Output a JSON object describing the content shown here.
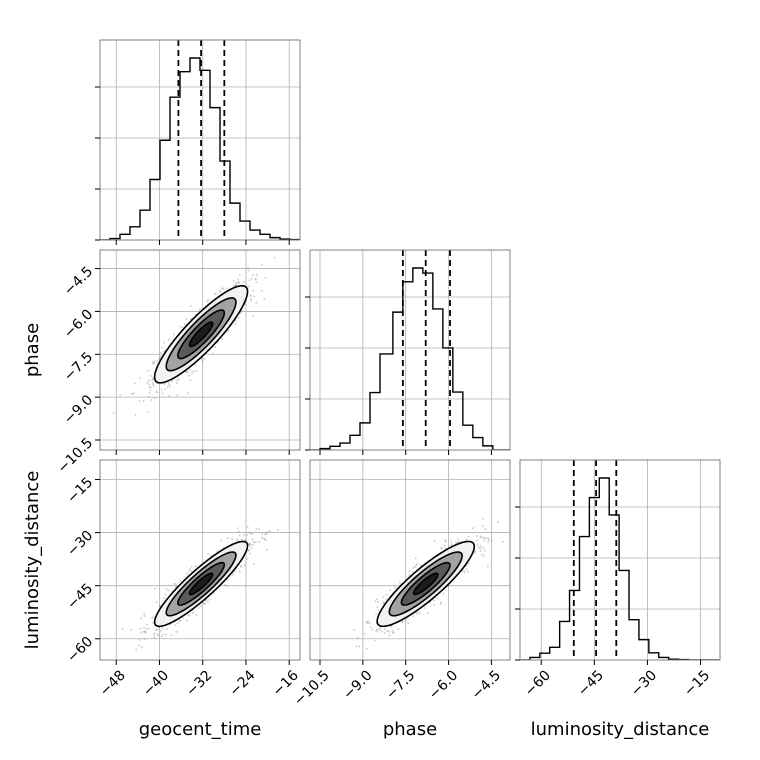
{
  "chart_data": {
    "type": "corner",
    "parameters": [
      "geocent_time",
      "phase",
      "luminosity_distance"
    ],
    "grid": true,
    "colors": {
      "hist_line": "#000000",
      "quantile_line": "#000000",
      "grid": "#b0b0b0",
      "scatter": "#9a9a9a"
    },
    "quantile_style": "dashed",
    "axes": {
      "geocent_time": {
        "label": "geocent_time",
        "range": [
          -51,
          -14
        ],
        "ticks": [
          -48,
          -40,
          -32,
          -24,
          -16
        ],
        "tick_labels": [
          "−48",
          "−40",
          "−32",
          "−24",
          "−16"
        ],
        "quantiles": [
          -36.5,
          -32.3,
          -28.0
        ]
      },
      "phase": {
        "label": "phase",
        "range": [
          -10.85,
          -3.85
        ],
        "ticks": [
          -10.5,
          -9.0,
          -7.5,
          -6.0,
          -4.5
        ],
        "tick_labels": [
          "−10.5",
          "−9.0",
          "−7.5",
          "−6.0",
          "−4.5"
        ],
        "quantiles": [
          -7.6,
          -6.8,
          -5.95
        ]
      },
      "luminosity_distance": {
        "label": "luminosity_distance",
        "range": [
          -66,
          -9.5
        ],
        "ticks": [
          -60,
          -45,
          -30,
          -15
        ],
        "tick_labels": [
          "−60",
          "−45",
          "−30",
          "−15"
        ],
        "quantiles": [
          -50.8,
          -44.5,
          -38.8
        ]
      }
    },
    "histograms": {
      "geocent_time": {
        "bin_edges": [
          -51,
          -49.15,
          -47.3,
          -45.45,
          -43.6,
          -41.75,
          -39.9,
          -38.05,
          -36.2,
          -34.35,
          -32.5,
          -30.65,
          -28.8,
          -26.95,
          -25.1,
          -23.25,
          -21.4,
          -19.55,
          -17.7,
          -15.85,
          -14
        ],
        "counts": [
          0,
          3,
          12,
          28,
          63,
          128,
          211,
          302,
          356,
          385,
          359,
          280,
          167,
          78,
          40,
          21,
          12,
          5,
          2,
          1
        ]
      },
      "phase": {
        "bin_edges": [
          -10.85,
          -10.5,
          -10.15,
          -9.8,
          -9.45,
          -9.1,
          -8.75,
          -8.4,
          -7.95,
          -7.6,
          -7.25,
          -6.9,
          -6.55,
          -6.2,
          -5.85,
          -5.5,
          -5.15,
          -4.8,
          -4.45,
          -4.1,
          -3.85
        ],
        "counts": [
          0,
          3,
          8,
          15,
          32,
          59,
          125,
          209,
          300,
          366,
          396,
          385,
          307,
          222,
          126,
          54,
          27,
          9,
          0,
          0
        ]
      },
      "luminosity_distance": {
        "bin_edges": [
          -66,
          -63.2,
          -60.4,
          -57.6,
          -54.8,
          -52,
          -49.2,
          -46.4,
          -43.6,
          -40.8,
          -38,
          -35.2,
          -32.4,
          -29.6,
          -26.8,
          -24,
          -21.2,
          -18.4,
          -15.6,
          -12.8,
          -9.5
        ],
        "counts": [
          0,
          6,
          16,
          30,
          91,
          164,
          291,
          383,
          429,
          342,
          211,
          95,
          48,
          17,
          6,
          2,
          1,
          0,
          0,
          0
        ]
      }
    },
    "pairs": [
      {
        "x": "geocent_time",
        "y": "phase",
        "mean": [
          -32.3,
          -6.8
        ],
        "sd": [
          4.3,
          0.85
        ],
        "rho": 0.88
      },
      {
        "x": "geocent_time",
        "y": "luminosity_distance",
        "mean": [
          -32.3,
          -44.5
        ],
        "sd": [
          4.3,
          6.0
        ],
        "rho": 0.9
      },
      {
        "x": "phase",
        "y": "luminosity_distance",
        "mean": [
          -6.8,
          -44.5
        ],
        "sd": [
          0.85,
          6.0
        ],
        "rho": 0.88
      }
    ],
    "contour_levels_sigma": [
      0.5,
      1.0,
      1.5,
      2.0
    ],
    "contour_fill_colors": [
      "#1c1c1c",
      "#5a5a5a",
      "#a3a3a3",
      "#f2f2f2"
    ]
  }
}
